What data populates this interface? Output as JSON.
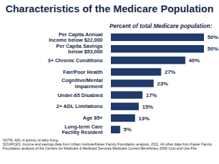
{
  "chart_data": {
    "type": "bar",
    "title": "Characteristics of the Medicare Population",
    "subtitle": "Percent of total Medicare population:",
    "orientation": "horizontal",
    "categories": [
      "Per Capita Annual Income below $22,000",
      "Per Capita Savings below $53,000",
      "3+ Chronic Conditions",
      "Fair/Poor Health",
      "Cognitive/Mental Impairment",
      "Under-65 Disabled",
      "2+ ADL Limitations",
      "Age 85+",
      "Long-term Care Facility Resident"
    ],
    "values": [
      50,
      50,
      40,
      27,
      23,
      17,
      15,
      13,
      5
    ],
    "value_labels": [
      "50%",
      "50%",
      "40%",
      "27%",
      "23%",
      "17%",
      "15%",
      "13%",
      "5%"
    ],
    "color": "#1f3a6b",
    "xlim": [
      0,
      50
    ],
    "data_labels": true,
    "grid": false,
    "tick_labels": "y",
    "note": "NOTE: ADL is activity of daily living.",
    "sources": "SOURCES: Income and savings data from Urban Institute/Kaiser Family Foundation analysis, 2011. All other data from Kaiser Family Foundation analysis of the Centers for Medicare & Medicaid Services Medicare Current Beneficiary 2009 Cost and Use File."
  }
}
